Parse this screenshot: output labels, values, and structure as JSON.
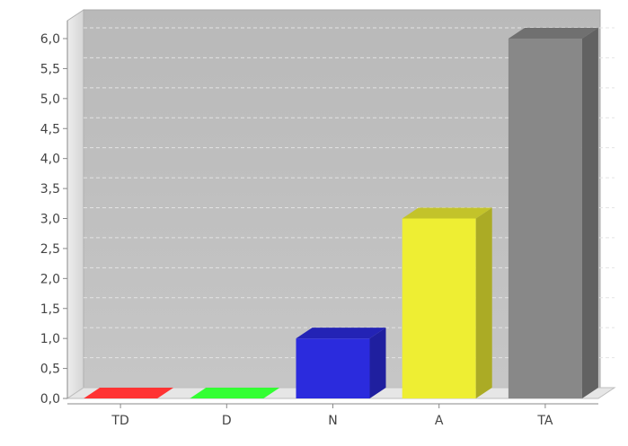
{
  "chart_data": {
    "type": "bar",
    "style": "3d",
    "categories": [
      "TD",
      "D",
      "N",
      "A",
      "TA"
    ],
    "values": [
      0,
      0,
      1,
      3,
      6
    ],
    "colors": [
      "#ff3333",
      "#33ff33",
      "#2b2bdd",
      "#eeee33",
      "#888888"
    ],
    "y_ticks": [
      "0,0",
      "0,5",
      "1,0",
      "1,5",
      "2,0",
      "2,5",
      "3,0",
      "3,5",
      "4,0",
      "4,5",
      "5,0",
      "5,5",
      "6,0"
    ],
    "ylim": [
      0,
      6
    ],
    "grid": true,
    "legend": "none"
  }
}
